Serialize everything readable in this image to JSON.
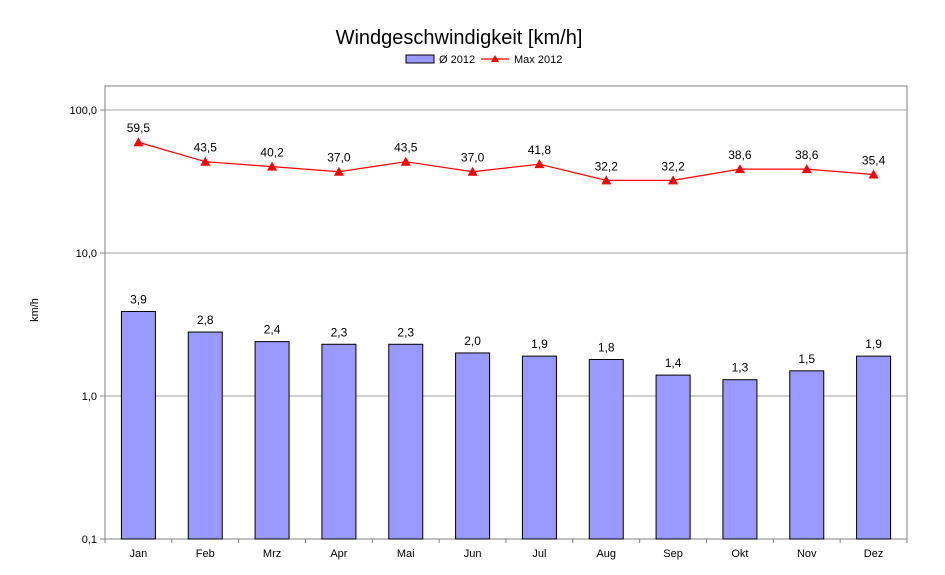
{
  "chart_data": {
    "type": "bar",
    "title": "Windgeschwindigkeit [km/h]",
    "xlabel": "",
    "ylabel": "km/h",
    "yscale": "log",
    "ylim": [
      0.1,
      200
    ],
    "yticks": [
      0.1,
      1.0,
      10.0,
      100.0
    ],
    "ytick_labels": [
      "0,1",
      "1,0",
      "10,0",
      "100,0"
    ],
    "grid": "horizontal",
    "legend_position": "top",
    "categories": [
      "Jan",
      "Feb",
      "Mrz",
      "Apr",
      "Mai",
      "Jun",
      "Jul",
      "Aug",
      "Sep",
      "Okt",
      "Nov",
      "Dez"
    ],
    "series": [
      {
        "name": "Ø 2012",
        "kind": "bar",
        "color": "#9999ff",
        "values": [
          3.9,
          2.8,
          2.4,
          2.3,
          2.3,
          2.0,
          1.9,
          1.8,
          1.4,
          1.3,
          1.5,
          1.9
        ],
        "labels": [
          "3,9",
          "2,8",
          "2,4",
          "2,3",
          "2,3",
          "2,0",
          "1,9",
          "1,8",
          "1,4",
          "1,3",
          "1,5",
          "1,9"
        ]
      },
      {
        "name": "Max 2012",
        "kind": "line",
        "marker": "triangle",
        "color": "#ff0000",
        "values": [
          59.5,
          43.5,
          40.2,
          37.0,
          43.5,
          37.0,
          41.8,
          32.2,
          32.2,
          38.6,
          38.6,
          35.4
        ],
        "labels": [
          "59,5",
          "43,5",
          "40,2",
          "37,0",
          "43,5",
          "37,0",
          "41,8",
          "32,2",
          "32,2",
          "38,6",
          "38,6",
          "35,4"
        ]
      }
    ]
  }
}
